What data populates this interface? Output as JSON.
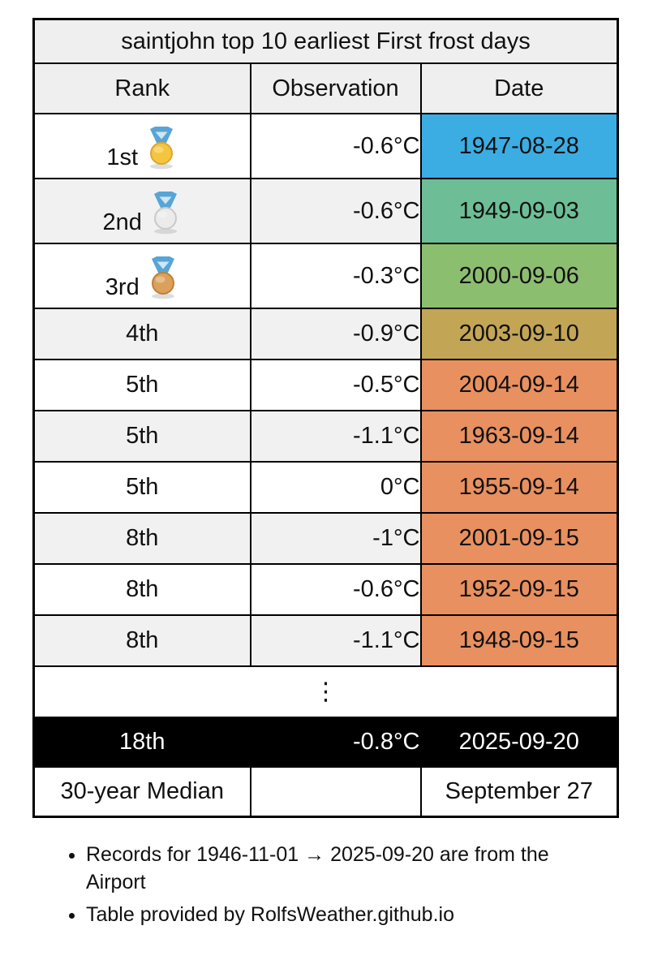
{
  "page": {
    "title": "saintjohn top 10 earliest First frost days"
  },
  "table": {
    "columns": [
      "Rank",
      "Observation",
      "Date"
    ],
    "rows": [
      {
        "rank": "1st",
        "medal": "gold",
        "observation": "-0.6°C",
        "date": "1947-08-28",
        "date_bg": "#3BADE3"
      },
      {
        "rank": "2nd",
        "medal": "silver",
        "observation": "-0.6°C",
        "date": "1949-09-03",
        "date_bg": "#6DBE96"
      },
      {
        "rank": "3rd",
        "medal": "bronze",
        "observation": "-0.3°C",
        "date": "2000-09-06",
        "date_bg": "#8CBE70"
      },
      {
        "rank": "4th",
        "medal": null,
        "observation": "-0.9°C",
        "date": "2003-09-10",
        "date_bg": "#C3A556"
      },
      {
        "rank": "5th",
        "medal": null,
        "observation": "-0.5°C",
        "date": "2004-09-14",
        "date_bg": "#E89060"
      },
      {
        "rank": "5th",
        "medal": null,
        "observation": "-1.1°C",
        "date": "1963-09-14",
        "date_bg": "#E89060"
      },
      {
        "rank": "5th",
        "medal": null,
        "observation": "0°C",
        "date": "1955-09-14",
        "date_bg": "#E89060"
      },
      {
        "rank": "8th",
        "medal": null,
        "observation": "-1°C",
        "date": "2001-09-15",
        "date_bg": "#E89060"
      },
      {
        "rank": "8th",
        "medal": null,
        "observation": "-0.6°C",
        "date": "1952-09-15",
        "date_bg": "#E89060"
      },
      {
        "rank": "8th",
        "medal": null,
        "observation": "-1.1°C",
        "date": "1948-09-15",
        "date_bg": "#E89060"
      }
    ],
    "ellipsis": "⋮",
    "current": {
      "rank": "18th",
      "observation": "-0.8°C",
      "date": "2025-09-20",
      "bg": "#000000",
      "fg": "#ffffff"
    },
    "median": {
      "label": "30-year Median",
      "observation": "",
      "date": "September 27"
    }
  },
  "footnotes": [
    "Records for 1946-11-01 → 2025-09-20 are from the Airport",
    "Table provided by RolfsWeather.github.io"
  ],
  "colors": {
    "border": "#000000",
    "header_bg": "#EFEFEF",
    "zebra_bg": "#F1F1F1",
    "row_bg": "#FFFFFF",
    "date_blue": "#3BADE3",
    "date_teal_green": "#6DBE96",
    "date_green": "#8CBE70",
    "date_mustard": "#C3A556",
    "date_orange": "#E89060",
    "current_bg": "#000000",
    "current_fg": "#FFFFFF"
  },
  "medal_icons": {
    "gold": {
      "ribbon": "#57A5D6",
      "ribbon_inner": "#CFE6F4",
      "disc": "#F4C63F",
      "rim": "#E0A532"
    },
    "silver": {
      "ribbon": "#57A5D6",
      "ribbon_inner": "#CFE6F4",
      "disc": "#EBEBEB",
      "rim": "#C9C9C9"
    },
    "bronze": {
      "ribbon": "#57A5D6",
      "ribbon_inner": "#CFE6F4",
      "disc": "#DBA15C",
      "rim": "#BE8136"
    }
  },
  "chart_data": {
    "type": "table",
    "title": "saintjohn top 10 earliest First frost days",
    "columns": [
      "Rank",
      "Observation",
      "Date"
    ],
    "rows": [
      [
        "1st",
        "-0.6°C",
        "1947-08-28"
      ],
      [
        "2nd",
        "-0.6°C",
        "1949-09-03"
      ],
      [
        "3rd",
        "-0.3°C",
        "2000-09-06"
      ],
      [
        "4th",
        "-0.9°C",
        "2003-09-10"
      ],
      [
        "5th",
        "-0.5°C",
        "2004-09-14"
      ],
      [
        "5th",
        "-1.1°C",
        "1963-09-14"
      ],
      [
        "5th",
        "0°C",
        "1955-09-14"
      ],
      [
        "8th",
        "-1°C",
        "2001-09-15"
      ],
      [
        "8th",
        "-0.6°C",
        "1952-09-15"
      ],
      [
        "8th",
        "-1.1°C",
        "1948-09-15"
      ],
      [
        "⋮",
        "",
        ""
      ],
      [
        "18th",
        "-0.8°C",
        "2025-09-20"
      ],
      [
        "30-year Median",
        "",
        "September 27"
      ]
    ]
  }
}
